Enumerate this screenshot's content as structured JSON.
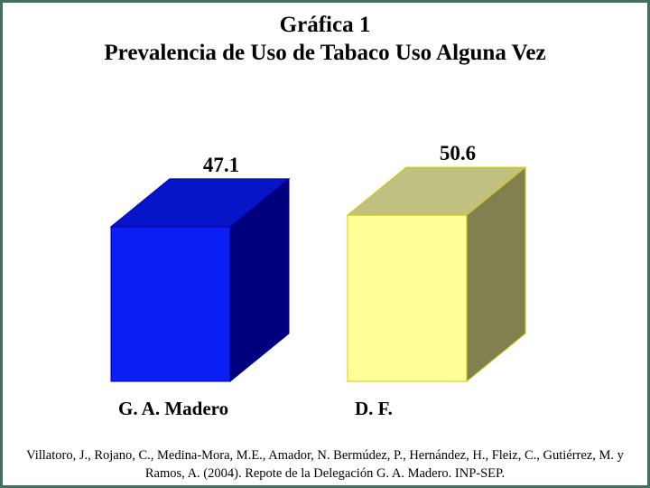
{
  "title": {
    "line1": "Gráfica 1",
    "line2": "Prevalencia de Uso de Tabaco Uso Alguna Vez"
  },
  "chart_data": {
    "type": "bar",
    "style": "3d",
    "categories": [
      "G. A. Madero",
      "D. F."
    ],
    "values": [
      47.1,
      50.6
    ],
    "value_labels": [
      "47.1",
      "50.6"
    ],
    "colors": {
      "G. A. Madero": {
        "front": "#0a1ef5",
        "top": "#0715c8",
        "side": "#00007f",
        "edge": "#0000a0"
      },
      "D. F.": {
        "front": "#ffff99",
        "top": "#c0c080",
        "side": "#808050",
        "edge": "#d4c800"
      }
    },
    "title": "Prevalencia de Uso de Tabaco Uso Alguna Vez",
    "xlabel": "",
    "ylabel": "",
    "ylim": [
      0,
      60
    ],
    "grid": false,
    "legend": "none"
  },
  "citation": "Villatoro, J., Rojano, C., Medina-Mora, M.E., Amador, N. Bermúdez, P., Hernández, H., Fleiz, C., Gutiérrez, M. y Ramos, A. (2004). Repote de la Delegación G. A. Madero. INP-SEP.",
  "frame_color": "#3f6f5f"
}
